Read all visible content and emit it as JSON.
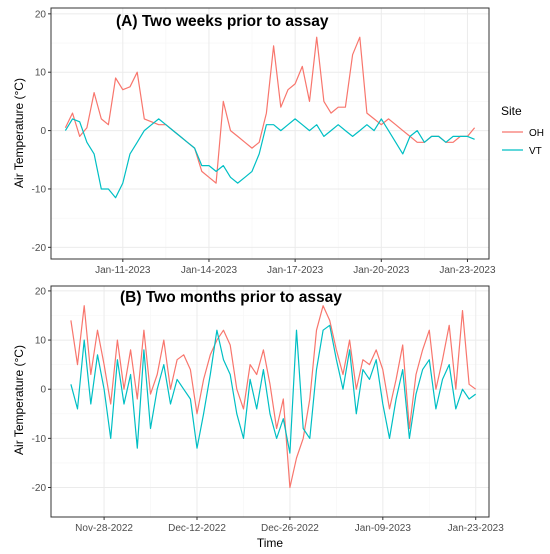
{
  "colors": {
    "OH": "#F8766D",
    "VT": "#00BFC4"
  },
  "legend": {
    "title": "Site",
    "items": [
      {
        "name": "OH",
        "color": "#F8766D"
      },
      {
        "name": "VT",
        "color": "#00BFC4"
      }
    ]
  },
  "xlabel": "Time",
  "chart_data": [
    {
      "type": "line",
      "title": "(A) Two weeks prior to assay",
      "xlabel": "",
      "ylabel": "Air Temperature (°C)",
      "x_unit": "date",
      "xlim": [
        "2023-01-08T12:00",
        "2023-01-23T18:00"
      ],
      "ylim": [
        -22,
        21
      ],
      "y_ticks": [
        -20,
        -10,
        0,
        10,
        20
      ],
      "x_ticks": [
        "2023-01-11",
        "2023-01-14",
        "2023-01-17",
        "2023-01-20",
        "2023-01-23"
      ],
      "x_tick_labels": [
        "Jan-11-2023",
        "Jan-14-2023",
        "Jan-17-2023",
        "Jan-20-2023",
        "Jan-23-2023"
      ],
      "grid": true,
      "legend_position": "right",
      "series": [
        {
          "name": "OH",
          "x": [
            "2023-01-09T00:00",
            "2023-01-09T06:00",
            "2023-01-09T12:00",
            "2023-01-09T18:00",
            "2023-01-10T00:00",
            "2023-01-10T06:00",
            "2023-01-10T12:00",
            "2023-01-10T18:00",
            "2023-01-11T00:00",
            "2023-01-11T06:00",
            "2023-01-11T12:00",
            "2023-01-11T18:00",
            "2023-01-12T00:00",
            "2023-01-12T06:00",
            "2023-01-12T12:00",
            "2023-01-12T18:00",
            "2023-01-13T00:00",
            "2023-01-13T06:00",
            "2023-01-13T12:00",
            "2023-01-13T18:00",
            "2023-01-14T00:00",
            "2023-01-14T06:00",
            "2023-01-14T12:00",
            "2023-01-14T18:00",
            "2023-01-15T00:00",
            "2023-01-15T06:00",
            "2023-01-15T12:00",
            "2023-01-15T18:00",
            "2023-01-16T00:00",
            "2023-01-16T06:00",
            "2023-01-16T12:00",
            "2023-01-16T18:00",
            "2023-01-17T00:00",
            "2023-01-17T06:00",
            "2023-01-17T12:00",
            "2023-01-17T18:00",
            "2023-01-18T00:00",
            "2023-01-18T06:00",
            "2023-01-18T12:00",
            "2023-01-18T18:00",
            "2023-01-19T00:00",
            "2023-01-19T06:00",
            "2023-01-19T12:00",
            "2023-01-19T18:00",
            "2023-01-20T00:00",
            "2023-01-20T06:00",
            "2023-01-20T12:00",
            "2023-01-20T18:00",
            "2023-01-21T00:00",
            "2023-01-21T06:00",
            "2023-01-21T12:00",
            "2023-01-21T18:00",
            "2023-01-22T00:00",
            "2023-01-22T06:00",
            "2023-01-22T12:00",
            "2023-01-22T18:00",
            "2023-01-23T00:00",
            "2023-01-23T06:00"
          ],
          "values": [
            0.5,
            3,
            -1,
            0.5,
            6.5,
            2,
            1,
            9,
            7,
            7.5,
            10,
            2,
            1.5,
            1,
            1,
            0,
            -1,
            -2,
            -3,
            -7,
            -8,
            -9,
            5,
            0,
            -1,
            -2,
            -3,
            -2,
            3,
            14.5,
            4,
            7,
            8,
            11,
            5,
            16,
            5,
            3,
            4,
            4,
            13,
            16,
            3,
            2,
            1,
            2,
            1,
            0,
            -1,
            -2,
            -2,
            -1,
            -1,
            -2,
            -2,
            -1,
            -1,
            0.5
          ]
        },
        {
          "name": "VT",
          "x": [
            "2023-01-09T00:00",
            "2023-01-09T06:00",
            "2023-01-09T12:00",
            "2023-01-09T18:00",
            "2023-01-10T00:00",
            "2023-01-10T06:00",
            "2023-01-10T12:00",
            "2023-01-10T18:00",
            "2023-01-11T00:00",
            "2023-01-11T06:00",
            "2023-01-11T12:00",
            "2023-01-11T18:00",
            "2023-01-12T00:00",
            "2023-01-12T06:00",
            "2023-01-12T12:00",
            "2023-01-12T18:00",
            "2023-01-13T00:00",
            "2023-01-13T06:00",
            "2023-01-13T12:00",
            "2023-01-13T18:00",
            "2023-01-14T00:00",
            "2023-01-14T06:00",
            "2023-01-14T12:00",
            "2023-01-14T18:00",
            "2023-01-15T00:00",
            "2023-01-15T06:00",
            "2023-01-15T12:00",
            "2023-01-15T18:00",
            "2023-01-16T00:00",
            "2023-01-16T06:00",
            "2023-01-16T12:00",
            "2023-01-16T18:00",
            "2023-01-17T00:00",
            "2023-01-17T06:00",
            "2023-01-17T12:00",
            "2023-01-17T18:00",
            "2023-01-18T00:00",
            "2023-01-18T06:00",
            "2023-01-18T12:00",
            "2023-01-18T18:00",
            "2023-01-19T00:00",
            "2023-01-19T06:00",
            "2023-01-19T12:00",
            "2023-01-19T18:00",
            "2023-01-20T00:00",
            "2023-01-20T06:00",
            "2023-01-20T12:00",
            "2023-01-20T18:00",
            "2023-01-21T00:00",
            "2023-01-21T06:00",
            "2023-01-21T12:00",
            "2023-01-21T18:00",
            "2023-01-22T00:00",
            "2023-01-22T06:00",
            "2023-01-22T12:00",
            "2023-01-22T18:00",
            "2023-01-23T00:00",
            "2023-01-23T06:00"
          ],
          "values": [
            0,
            2,
            1.5,
            -2,
            -4,
            -10,
            -10,
            -11.5,
            -9,
            -4,
            -2,
            0,
            1,
            2,
            1,
            0,
            -1,
            -2,
            -3,
            -6,
            -6,
            -7,
            -6,
            -8,
            -9,
            -8,
            -7,
            -4,
            1,
            1,
            0,
            1,
            2,
            1,
            0,
            1,
            -1,
            0,
            1,
            0,
            -1,
            0,
            1,
            0,
            2,
            0,
            -2,
            -4,
            -1,
            0,
            -2,
            -1,
            -1,
            -2,
            -1,
            -1,
            -1,
            -1.5
          ]
        }
      ]
    },
    {
      "type": "line",
      "title": "(B) Two months prior to assay",
      "xlabel": "Time",
      "ylabel": "Air Temperature (°C)",
      "x_unit": "date",
      "xlim": [
        "2022-11-20",
        "2023-01-25"
      ],
      "ylim": [
        -26,
        21
      ],
      "y_ticks": [
        -20,
        -10,
        0,
        10,
        20
      ],
      "x_ticks": [
        "2022-11-28",
        "2022-12-12",
        "2022-12-26",
        "2023-01-09",
        "2023-01-23"
      ],
      "x_tick_labels": [
        "Nov-28-2022",
        "Dec-12-2022",
        "Dec-26-2022",
        "Jan-09-2023",
        "Jan-23-2023"
      ],
      "grid": true,
      "series": [
        {
          "name": "OH",
          "x": [
            "2022-11-23",
            "2022-11-24",
            "2022-11-25",
            "2022-11-26",
            "2022-11-27",
            "2022-11-28",
            "2022-11-29",
            "2022-11-30",
            "2022-12-01",
            "2022-12-02",
            "2022-12-03",
            "2022-12-04",
            "2022-12-05",
            "2022-12-06",
            "2022-12-07",
            "2022-12-08",
            "2022-12-09",
            "2022-12-10",
            "2022-12-11",
            "2022-12-12",
            "2022-12-13",
            "2022-12-14",
            "2022-12-15",
            "2022-12-16",
            "2022-12-17",
            "2022-12-18",
            "2022-12-19",
            "2022-12-20",
            "2022-12-21",
            "2022-12-22",
            "2022-12-23",
            "2022-12-24",
            "2022-12-25",
            "2022-12-26",
            "2022-12-27",
            "2022-12-28",
            "2022-12-29",
            "2022-12-30",
            "2022-12-31",
            "2023-01-01",
            "2023-01-02",
            "2023-01-03",
            "2023-01-04",
            "2023-01-05",
            "2023-01-06",
            "2023-01-07",
            "2023-01-08",
            "2023-01-09",
            "2023-01-10",
            "2023-01-11",
            "2023-01-12",
            "2023-01-13",
            "2023-01-14",
            "2023-01-15",
            "2023-01-16",
            "2023-01-17",
            "2023-01-18",
            "2023-01-19",
            "2023-01-20",
            "2023-01-21",
            "2023-01-22",
            "2023-01-23"
          ],
          "values": [
            14,
            5,
            17,
            3,
            12,
            5,
            -3,
            10,
            0,
            8,
            -2,
            12,
            -1,
            3,
            10,
            0,
            6,
            7,
            4,
            -5,
            2,
            7,
            10,
            12,
            9,
            0,
            -4,
            5,
            3,
            8,
            1,
            -8,
            -2,
            -20,
            -14,
            -10,
            -2,
            12,
            17,
            14,
            8,
            3,
            10,
            0,
            6,
            5,
            8,
            4,
            -4,
            2,
            9,
            -8,
            3,
            8,
            12,
            0,
            6,
            13,
            0,
            16,
            1,
            0
          ]
        },
        {
          "name": "VT",
          "x": [
            "2022-11-23",
            "2022-11-24",
            "2022-11-25",
            "2022-11-26",
            "2022-11-27",
            "2022-11-28",
            "2022-11-29",
            "2022-11-30",
            "2022-12-01",
            "2022-12-02",
            "2022-12-03",
            "2022-12-04",
            "2022-12-05",
            "2022-12-06",
            "2022-12-07",
            "2022-12-08",
            "2022-12-09",
            "2022-12-10",
            "2022-12-11",
            "2022-12-12",
            "2022-12-13",
            "2022-12-14",
            "2022-12-15",
            "2022-12-16",
            "2022-12-17",
            "2022-12-18",
            "2022-12-19",
            "2022-12-20",
            "2022-12-21",
            "2022-12-22",
            "2022-12-23",
            "2022-12-24",
            "2022-12-25",
            "2022-12-26",
            "2022-12-27",
            "2022-12-28",
            "2022-12-29",
            "2022-12-30",
            "2022-12-31",
            "2023-01-01",
            "2023-01-02",
            "2023-01-03",
            "2023-01-04",
            "2023-01-05",
            "2023-01-06",
            "2023-01-07",
            "2023-01-08",
            "2023-01-09",
            "2023-01-10",
            "2023-01-11",
            "2023-01-12",
            "2023-01-13",
            "2023-01-14",
            "2023-01-15",
            "2023-01-16",
            "2023-01-17",
            "2023-01-18",
            "2023-01-19",
            "2023-01-20",
            "2023-01-21",
            "2023-01-22",
            "2023-01-23"
          ],
          "values": [
            1,
            -4,
            10,
            -3,
            7,
            0,
            -10,
            6,
            -3,
            3,
            -12,
            8,
            -8,
            0,
            5,
            -3,
            2,
            0,
            -2,
            -12,
            -5,
            3,
            12,
            6,
            3,
            -5,
            -10,
            2,
            -4,
            4,
            -5,
            -10,
            -6,
            -13,
            12,
            -8,
            -10,
            4,
            12,
            13,
            6,
            0,
            8,
            -5,
            4,
            2,
            6,
            -3,
            -10,
            -2,
            4,
            -10,
            -1,
            4,
            6,
            -4,
            2,
            5,
            -4,
            0,
            -2,
            -1
          ]
        }
      ]
    }
  ]
}
